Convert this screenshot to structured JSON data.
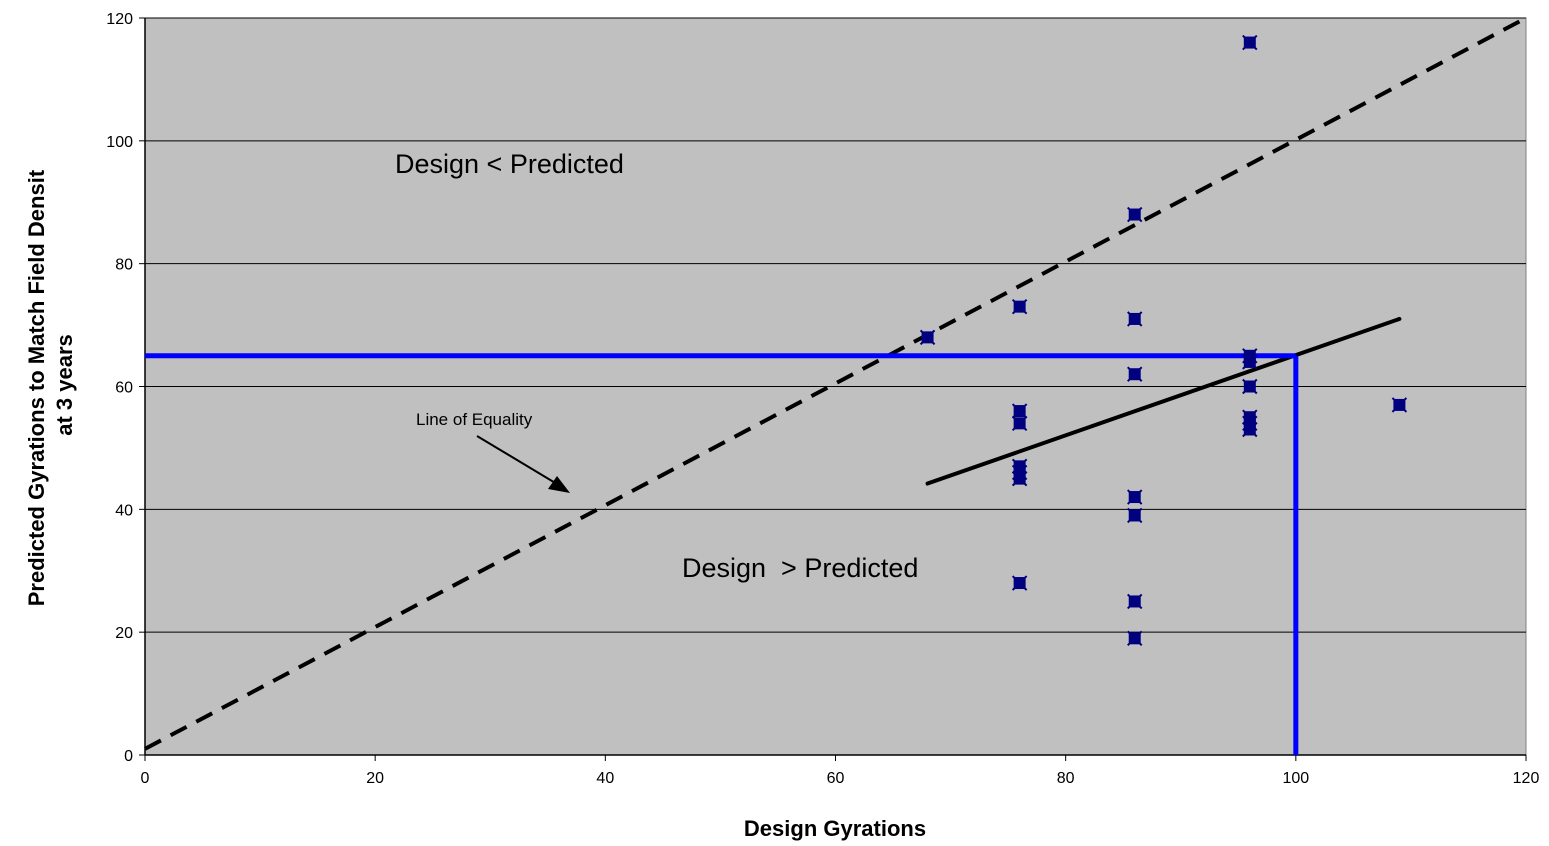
{
  "chart_data": {
    "type": "scatter",
    "xlabel": "Design Gyrations",
    "ylabel_lines": [
      "Predicted Gyrations to Match Field Densit",
      "at 3 years"
    ],
    "xlim": [
      0,
      120
    ],
    "ylim": [
      0,
      120
    ],
    "x_ticks": [
      "0",
      "20",
      "40",
      "60",
      "80",
      "100",
      "120"
    ],
    "y_ticks": [
      "0",
      "20",
      "40",
      "60",
      "80",
      "100",
      "120"
    ],
    "grid": "horizontal",
    "plot_background": "#c0c0c0",
    "points": [
      {
        "x": 68,
        "y": 68
      },
      {
        "x": 76,
        "y": 73
      },
      {
        "x": 76,
        "y": 56
      },
      {
        "x": 76,
        "y": 54
      },
      {
        "x": 76,
        "y": 47
      },
      {
        "x": 76,
        "y": 46
      },
      {
        "x": 76,
        "y": 45
      },
      {
        "x": 76,
        "y": 28
      },
      {
        "x": 86,
        "y": 88
      },
      {
        "x": 86,
        "y": 71
      },
      {
        "x": 86,
        "y": 62
      },
      {
        "x": 86,
        "y": 42
      },
      {
        "x": 86,
        "y": 39
      },
      {
        "x": 86,
        "y": 25
      },
      {
        "x": 86,
        "y": 19
      },
      {
        "x": 96,
        "y": 116
      },
      {
        "x": 96,
        "y": 65
      },
      {
        "x": 96,
        "y": 64
      },
      {
        "x": 96,
        "y": 60
      },
      {
        "x": 96,
        "y": 55
      },
      {
        "x": 96,
        "y": 54
      },
      {
        "x": 96,
        "y": 53
      },
      {
        "x": 109,
        "y": 57
      }
    ],
    "point_color": "#000080",
    "equality_line": {
      "x": [
        0,
        120
      ],
      "y": [
        1,
        120
      ],
      "style": "dashed",
      "color": "#000000"
    },
    "trend_line": {
      "x": [
        68,
        109
      ],
      "y": [
        44.2,
        71
      ],
      "style": "solid",
      "color": "#000000"
    },
    "reference_lines": {
      "horizontal": {
        "x": [
          0,
          100
        ],
        "y": 65
      },
      "vertical": {
        "x": 100,
        "y": [
          0,
          65
        ]
      },
      "color": "#0000ff"
    },
    "annotations": {
      "upper_region": "Design < Predicted",
      "lower_region": "Design  > Predicted",
      "equality_label": "Line of Equality"
    }
  }
}
